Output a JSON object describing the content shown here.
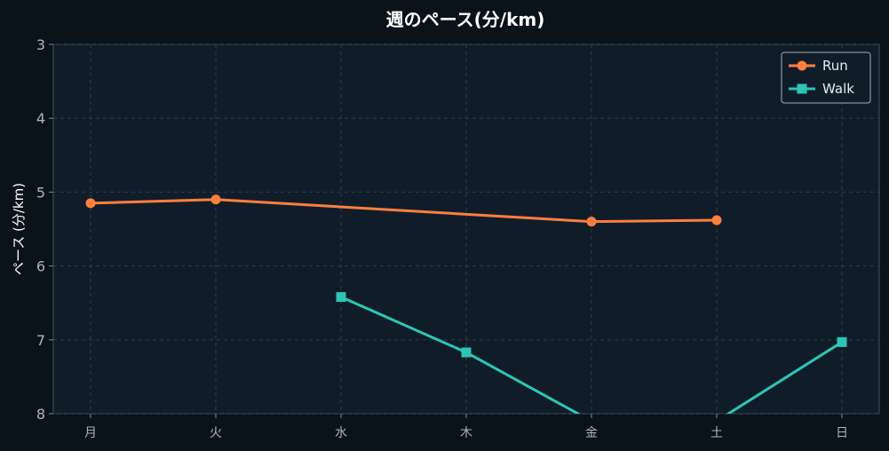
{
  "chart_data": {
    "type": "line",
    "title": "週のペース(分/km)",
    "xlabel": "",
    "ylabel": "ペース (分/km)",
    "categories": [
      "月",
      "火",
      "水",
      "木",
      "金",
      "土",
      "日"
    ],
    "ylim": [
      8,
      3
    ],
    "y_inverted": true,
    "yticks": [
      3,
      4,
      5,
      6,
      7,
      8
    ],
    "grid": true,
    "legend_position": "top-right",
    "series": [
      {
        "name": "Run",
        "color": "#ff7f3f",
        "marker": "circle",
        "values": [
          5.15,
          5.1,
          null,
          null,
          5.4,
          5.38,
          null
        ]
      },
      {
        "name": "Walk",
        "color": "#2ec4b6",
        "marker": "square",
        "values": [
          null,
          null,
          6.42,
          7.17,
          8.1,
          8.1,
          7.03
        ]
      }
    ]
  }
}
